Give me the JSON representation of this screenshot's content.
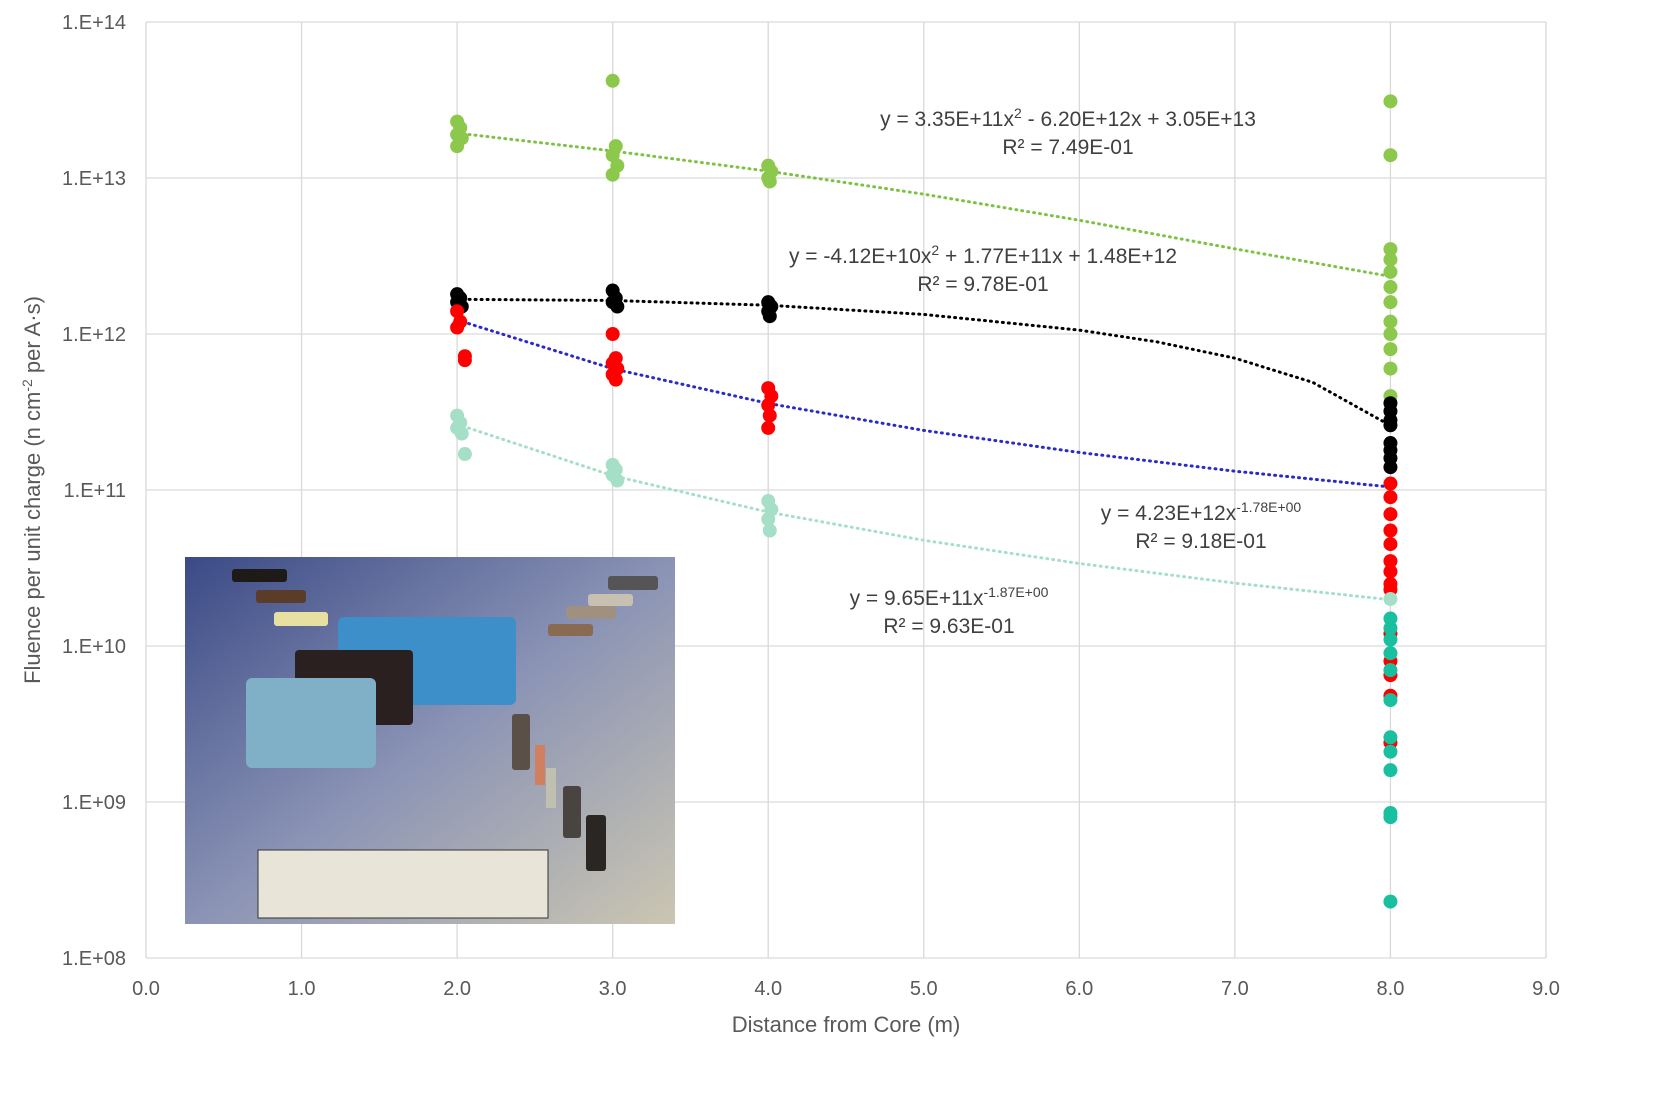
{
  "chart_data": {
    "type": "scatter",
    "xlabel": "Distance from Core (m)",
    "ylabel": [
      "Fluence per unit charge (n cm",
      "-2",
      " per A·s)"
    ],
    "xlim": [
      0,
      9
    ],
    "xticks": [
      {
        "value": 0,
        "label": "0.0"
      },
      {
        "value": 1,
        "label": "1.0"
      },
      {
        "value": 2,
        "label": "2.0"
      },
      {
        "value": 3,
        "label": "3.0"
      },
      {
        "value": 4,
        "label": "4.0"
      },
      {
        "value": 5,
        "label": "5.0"
      },
      {
        "value": 6,
        "label": "6.0"
      },
      {
        "value": 7,
        "label": "7.0"
      },
      {
        "value": 8,
        "label": "8.0"
      },
      {
        "value": 9,
        "label": "9.0"
      }
    ],
    "ylim": [
      100000000,
      100000000000000
    ],
    "yticks": [
      {
        "value": 100000000,
        "label": "1.E+08"
      },
      {
        "value": 1000000000,
        "label": "1.E+09"
      },
      {
        "value": 10000000000,
        "label": "1.E+10"
      },
      {
        "value": 100000000000,
        "label": "1.E+11"
      },
      {
        "value": 1000000000000,
        "label": "1.E+12"
      },
      {
        "value": 10000000000000,
        "label": "1.E+13"
      },
      {
        "value": 100000000000000,
        "label": "1.E+14"
      }
    ],
    "log_y": true,
    "grid": true,
    "series": [
      {
        "color": "#8cc84b",
        "x": [
          2.0,
          2.02,
          2.0,
          2.03,
          2.0,
          3.0,
          3.02,
          3.0,
          3.03,
          3.0,
          4.0,
          4.02,
          4.0,
          4.01,
          8.0,
          8.0,
          8.0,
          8.0,
          8.0,
          8.0,
          8.0,
          8.0,
          8.0,
          8.0,
          8.0,
          8.0
        ],
        "values": [
          23000000000000,
          21000000000000,
          19000000000000,
          18000000000000,
          16000000000000,
          42000000000000,
          16000000000000,
          14000000000000,
          12000000000000,
          10500000000000,
          12000000000000,
          11000000000000,
          10000000000000,
          9500000000000,
          31000000000000,
          14000000000000,
          3500000000000,
          3000000000000,
          2500000000000,
          2000000000000,
          1600000000000,
          1200000000000,
          1000000000000,
          800000000000,
          600000000000,
          400000000000
        ]
      },
      {
        "color": "#000000",
        "x": [
          2.0,
          2.02,
          2.0,
          2.03,
          3.0,
          3.02,
          3.0,
          3.03,
          4.0,
          4.02,
          4.0,
          4.01,
          8.0,
          8.0,
          8.0,
          8.0,
          8.0,
          8.0,
          8.0,
          8.0
        ],
        "values": [
          1800000000000,
          1700000000000,
          1600000000000,
          1500000000000,
          1900000000000,
          1700000000000,
          1600000000000,
          1500000000000,
          1600000000000,
          1500000000000,
          1400000000000,
          1300000000000,
          360000000000,
          320000000000,
          280000000000,
          260000000000,
          200000000000,
          180000000000,
          160000000000,
          140000000000
        ]
      },
      {
        "color": "#ff0000",
        "x": [
          2.0,
          2.02,
          2.0,
          2.05,
          2.05,
          3.0,
          3.02,
          3.0,
          3.03,
          3.0,
          3.02,
          4.0,
          4.02,
          4.0,
          4.01,
          4.0,
          8.0,
          8.0,
          8.0,
          8.0,
          8.0,
          8.0,
          8.0,
          8.0,
          8.0,
          8.0,
          8.0,
          8.0,
          8.0,
          8.0
        ],
        "values": [
          1400000000000,
          1200000000000,
          1100000000000,
          720000000000,
          680000000000,
          1000000000000,
          700000000000,
          650000000000,
          600000000000,
          550000000000,
          510000000000,
          450000000000,
          400000000000,
          350000000000,
          300000000000,
          250000000000,
          110000000000,
          90000000000,
          70000000000,
          55000000000,
          45000000000,
          35000000000,
          30000000000,
          25000000000,
          23000000000,
          12000000000,
          8000000000,
          6500000000,
          4800000000,
          2400000000
        ]
      },
      {
        "color": "#a6dfc8",
        "x": [
          2.0,
          2.02,
          2.0,
          2.03,
          2.05,
          3.0,
          3.02,
          3.0,
          3.03,
          4.0,
          4.02,
          4.0,
          4.01,
          8.0
        ],
        "values": [
          300000000000,
          270000000000,
          250000000000,
          230000000000,
          170000000000,
          145000000000,
          135000000000,
          125000000000,
          115000000000,
          85000000000,
          75000000000,
          65000000000,
          55000000000,
          20000000000
        ]
      },
      {
        "color": "#19c0a0",
        "x": [
          8.0,
          8.0,
          8.0,
          8.0,
          8.0,
          8.0,
          8.0,
          8.0,
          8.0,
          8.0,
          8.0,
          8.0
        ],
        "values": [
          15000000000,
          13000000000,
          11000000000,
          9000000000,
          7000000000,
          4500000000,
          2600000000,
          2100000000,
          1600000000,
          850000000,
          800000000,
          230000000
        ]
      }
    ],
    "trendlines": [
      {
        "color": "#7dc242",
        "x": [
          2,
          3,
          4,
          5,
          6,
          7,
          8
        ],
        "values": [
          19400000000000,
          14900000000000,
          11060000000000,
          7875000000000,
          5360000000000,
          3515000000000,
          2340000000000
        ]
      },
      {
        "color": "#000000",
        "x": [
          2,
          3,
          4,
          5,
          6,
          6.5,
          7,
          7.5,
          8
        ],
        "values": [
          1669000000000,
          1640000000000,
          1529000000000,
          1335000000000,
          1059000000000,
          890000000000,
          700000000000,
          490000000000,
          259000000000
        ]
      },
      {
        "color": "#2a2ac8",
        "x": [
          2,
          3,
          4,
          5,
          6,
          7,
          8
        ],
        "values": [
          1230000000000,
          599000000000,
          359000000000,
          241000000000,
          174000000000,
          132000000000,
          104500000000
        ]
      },
      {
        "color": "#a6dfc8",
        "x": [
          2,
          3,
          4,
          5,
          6,
          7,
          8
        ],
        "values": [
          264000000000,
          123600000000,
          72200000000,
          47600000000,
          33800000000,
          25300000000,
          19800000000
        ]
      }
    ],
    "annotations": [
      {
        "line1": [
          "y = 3.35E+11x",
          "2",
          " - 6.20E+12x + 3.05E+13"
        ],
        "line2": "R² = 7.49E-01"
      },
      {
        "line1": [
          "y = -4.12E+10x",
          "2",
          " + 1.77E+11x + 1.48E+12"
        ],
        "line2": "R² = 9.78E-01"
      },
      {
        "line1": [
          "y = 4.23E+12x",
          "-1.78E+00"
        ],
        "line2": "R² = 9.18E-01"
      },
      {
        "line1": [
          "y = 9.65E+11x",
          "-1.87E+00"
        ],
        "line2": "R² = 9.63E-01"
      }
    ]
  }
}
